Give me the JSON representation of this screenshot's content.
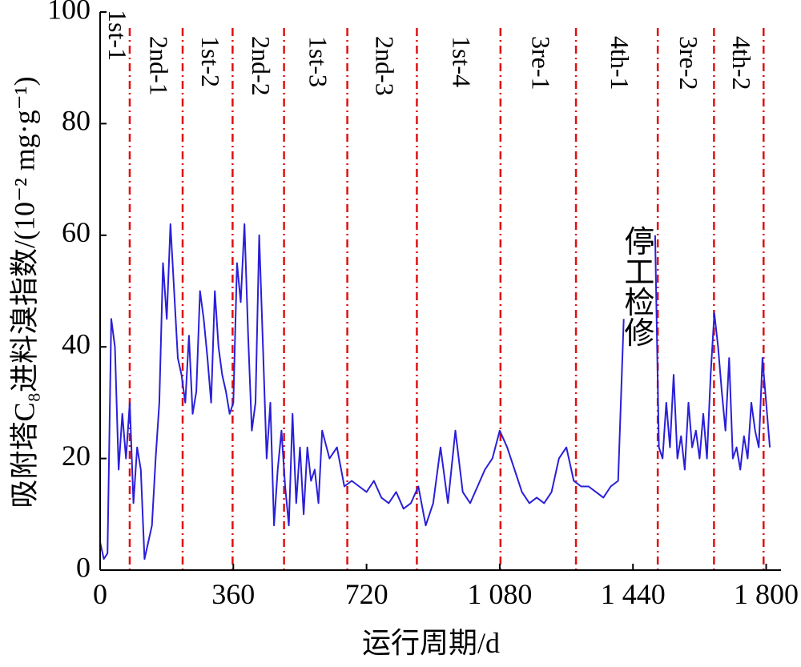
{
  "chart_data": {
    "type": "line",
    "xlabel": "运行周期/d",
    "ylabel": "吸附塔C₈进料溴指数/(10⁻² mg·g⁻¹)",
    "xlim": [
      0,
      1840
    ],
    "ylim": [
      0,
      100
    ],
    "xticks": [
      0,
      360,
      720,
      {
        "value": 1080,
        "label": "1 080"
      },
      {
        "value": 1440,
        "label": "1 440"
      },
      {
        "value": 1800,
        "label": "1 800"
      }
    ],
    "yticks": [
      0,
      20,
      40,
      60,
      80,
      100
    ],
    "phases": [
      "1st-1",
      "2nd-1",
      "1st-2",
      "2nd-2",
      "1st-3",
      "2nd-3",
      "1st-4",
      "3re-1",
      "4th-1",
      "3re-2",
      "4th-2"
    ],
    "phase_bounds": [
      80,
      223,
      358,
      497,
      668,
      856,
      1082,
      1286,
      1507,
      1659,
      1793
    ],
    "phase_line_color": "#e01010",
    "annotation": "停工检修",
    "annotation_x": 1448,
    "annotation_y": 60,
    "series": [
      {
        "name": "吸附塔C₈进料溴指数",
        "color": "#2a1fd8",
        "x": [
          0,
          10,
          20,
          30,
          40,
          50,
          60,
          70,
          80,
          90,
          100,
          110,
          120,
          130,
          140,
          150,
          160,
          170,
          180,
          190,
          200,
          210,
          220,
          230,
          240,
          250,
          260,
          270,
          280,
          290,
          300,
          310,
          320,
          330,
          340,
          350,
          360,
          370,
          380,
          390,
          400,
          410,
          420,
          430,
          440,
          450,
          460,
          470,
          480,
          490,
          500,
          510,
          520,
          530,
          540,
          550,
          560,
          570,
          580,
          590,
          600,
          620,
          640,
          660,
          680,
          700,
          720,
          740,
          760,
          780,
          800,
          820,
          840,
          860,
          880,
          900,
          920,
          940,
          960,
          980,
          1000,
          1020,
          1040,
          1060,
          1080,
          1100,
          1120,
          1140,
          1160,
          1180,
          1200,
          1220,
          1240,
          1260,
          1280,
          1300,
          1320,
          1340,
          1360,
          1380,
          1400,
          1415,
          1430,
          1500,
          1510,
          1520,
          1530,
          1540,
          1550,
          1560,
          1570,
          1580,
          1590,
          1600,
          1610,
          1620,
          1630,
          1640,
          1650,
          1660,
          1670,
          1680,
          1690,
          1700,
          1710,
          1720,
          1730,
          1740,
          1750,
          1760,
          1770,
          1780,
          1790,
          1800,
          1810
        ],
        "values": [
          5,
          2,
          3,
          45,
          40,
          18,
          28,
          20,
          30,
          12,
          22,
          18,
          2,
          5,
          8,
          20,
          30,
          55,
          45,
          62,
          50,
          38,
          35,
          30,
          42,
          28,
          32,
          50,
          45,
          38,
          30,
          50,
          40,
          35,
          32,
          28,
          30,
          55,
          48,
          62,
          42,
          25,
          30,
          60,
          40,
          20,
          30,
          8,
          18,
          25,
          15,
          8,
          28,
          12,
          22,
          10,
          22,
          16,
          18,
          12,
          25,
          20,
          22,
          15,
          16,
          15,
          14,
          16,
          13,
          12,
          14,
          11,
          12,
          15,
          8,
          12,
          22,
          12,
          25,
          14,
          12,
          15,
          18,
          20,
          25,
          22,
          18,
          14,
          12,
          13,
          12,
          14,
          20,
          22,
          16,
          15,
          15,
          14,
          13,
          15,
          16,
          45,
          null,
          60,
          22,
          20,
          30,
          22,
          35,
          20,
          24,
          18,
          30,
          22,
          25,
          20,
          28,
          20,
          35,
          46,
          40,
          32,
          25,
          38,
          20,
          22,
          18,
          24,
          20,
          30,
          25,
          22,
          38,
          30,
          22
        ]
      }
    ]
  }
}
